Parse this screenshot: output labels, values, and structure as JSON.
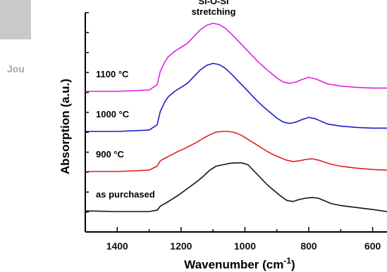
{
  "header_stub": "Jou",
  "chart_data": {
    "type": "line",
    "xlabel": "Wavenumber (cm",
    "xlabel_sup": "-1",
    "xlabel_close": ")",
    "ylabel": "Absorption (a.u.)",
    "x_reversed": true,
    "xlim": [
      1500,
      555
    ],
    "x_ticks": [
      1400,
      1200,
      1000,
      800,
      600
    ],
    "x_tick_labels": [
      "1400",
      "1200",
      "1000",
      "800",
      "600"
    ],
    "annotation": [
      "Si-O-Si",
      "stretching"
    ],
    "series": [
      {
        "name": "1100 °C",
        "color": "#e020e0",
        "offset": 3,
        "x": [
          1500,
          1400,
          1300,
          1275,
          1265,
          1250,
          1240,
          1220,
          1200,
          1180,
          1160,
          1140,
          1120,
          1100,
          1080,
          1060,
          1040,
          1020,
          1000,
          980,
          960,
          940,
          920,
          900,
          880,
          860,
          840,
          820,
          800,
          780,
          760,
          740,
          700,
          650,
          600,
          555
        ],
        "y": [
          0.0,
          0.0,
          0.02,
          0.1,
          0.3,
          0.45,
          0.52,
          0.6,
          0.66,
          0.72,
          0.82,
          0.92,
          0.99,
          1.02,
          1.0,
          0.94,
          0.85,
          0.75,
          0.65,
          0.55,
          0.45,
          0.36,
          0.28,
          0.2,
          0.14,
          0.12,
          0.14,
          0.18,
          0.21,
          0.19,
          0.15,
          0.11,
          0.08,
          0.06,
          0.05,
          0.05
        ]
      },
      {
        "name": "1000 °C",
        "color": "#1c1cc8",
        "offset": 2,
        "x": [
          1500,
          1400,
          1300,
          1275,
          1265,
          1250,
          1240,
          1220,
          1200,
          1180,
          1160,
          1140,
          1120,
          1100,
          1080,
          1060,
          1040,
          1020,
          1000,
          980,
          960,
          940,
          920,
          900,
          880,
          860,
          840,
          820,
          800,
          780,
          760,
          740,
          700,
          650,
          600,
          555
        ],
        "y": [
          0.0,
          0.0,
          0.02,
          0.1,
          0.3,
          0.45,
          0.52,
          0.6,
          0.66,
          0.72,
          0.82,
          0.92,
          0.99,
          1.02,
          1.0,
          0.94,
          0.85,
          0.75,
          0.65,
          0.55,
          0.45,
          0.36,
          0.28,
          0.2,
          0.14,
          0.12,
          0.14,
          0.18,
          0.21,
          0.19,
          0.15,
          0.11,
          0.08,
          0.06,
          0.05,
          0.05
        ]
      },
      {
        "name": "900 °C",
        "color": "#dd2020",
        "offset": 1,
        "x": [
          1500,
          1400,
          1300,
          1275,
          1265,
          1250,
          1230,
          1210,
          1190,
          1170,
          1150,
          1130,
          1110,
          1090,
          1070,
          1050,
          1030,
          1010,
          990,
          970,
          950,
          930,
          910,
          890,
          870,
          850,
          830,
          810,
          790,
          770,
          750,
          730,
          700,
          650,
          600,
          555
        ],
        "y": [
          0.0,
          0.0,
          0.02,
          0.08,
          0.16,
          0.2,
          0.25,
          0.3,
          0.34,
          0.39,
          0.44,
          0.5,
          0.55,
          0.59,
          0.6,
          0.6,
          0.58,
          0.54,
          0.48,
          0.42,
          0.36,
          0.3,
          0.25,
          0.21,
          0.17,
          0.15,
          0.16,
          0.18,
          0.19,
          0.17,
          0.14,
          0.11,
          0.08,
          0.05,
          0.03,
          0.02
        ]
      },
      {
        "name": "as purchased",
        "color": "#111111",
        "offset": 0,
        "x": [
          1500,
          1400,
          1300,
          1275,
          1265,
          1250,
          1230,
          1210,
          1190,
          1170,
          1150,
          1130,
          1110,
          1090,
          1070,
          1050,
          1030,
          1010,
          990,
          970,
          950,
          930,
          910,
          890,
          870,
          850,
          830,
          810,
          790,
          770,
          750,
          730,
          700,
          650,
          600,
          555
        ],
        "y": [
          0.01,
          0.0,
          0.0,
          0.02,
          0.08,
          0.12,
          0.18,
          0.24,
          0.31,
          0.38,
          0.45,
          0.53,
          0.62,
          0.68,
          0.7,
          0.72,
          0.73,
          0.73,
          0.7,
          0.6,
          0.5,
          0.4,
          0.32,
          0.24,
          0.17,
          0.15,
          0.18,
          0.2,
          0.21,
          0.2,
          0.16,
          0.12,
          0.09,
          0.06,
          0.03,
          0.0
        ]
      }
    ]
  }
}
